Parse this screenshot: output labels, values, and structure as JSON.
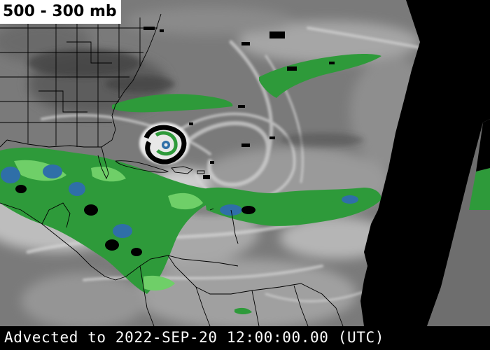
{
  "title": "500 - 300 mb",
  "footer": "Advected to 2022-SEP-20 12:00:00.00 (UTC)",
  "colors": {
    "background": "#7a7a7a",
    "no_data": "#000000",
    "moist_green": "#2e9a3a",
    "moist_green_light": "#6fcf68",
    "moist_blue": "#2f6fa8",
    "dry_dark": "#3e3e3e",
    "moist_white": "#e8e8e8",
    "borders": "#000000"
  },
  "features": [
    "hurricane-vortex",
    "tropical-moisture-plume",
    "coastlines",
    "state-borders",
    "data-gap-wedge"
  ]
}
